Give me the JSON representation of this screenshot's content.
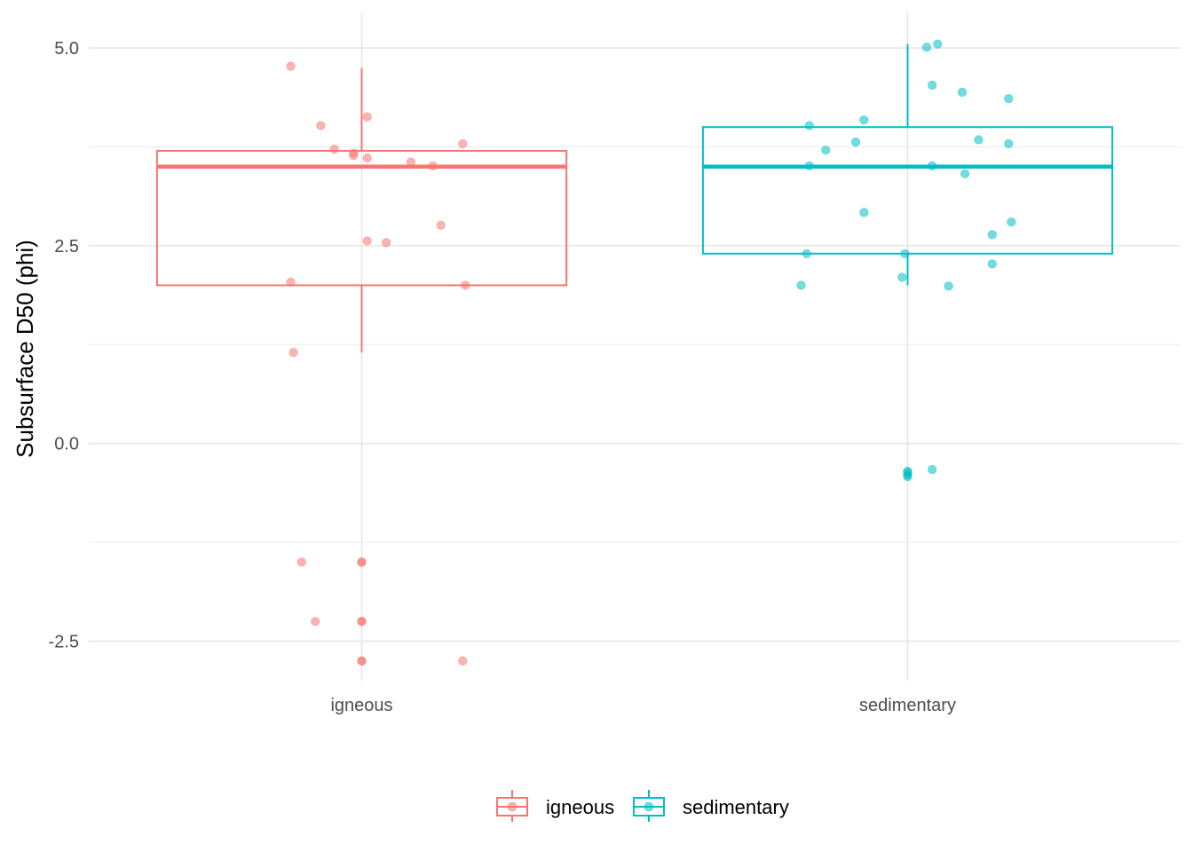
{
  "chart_data": {
    "type": "boxplot",
    "title": "",
    "xlabel": "",
    "ylabel": "Subsurface D50 (phi)",
    "ylim": [
      -3.0,
      5.45
    ],
    "y_ticks": [
      -2.5,
      0.0,
      2.5,
      5.0
    ],
    "y_tick_labels": [
      "-2.5",
      "0.0",
      "2.5",
      "5.0"
    ],
    "grid": true,
    "legend_position": "bottom",
    "categories": [
      "igneous",
      "sedimentary"
    ],
    "series": [
      {
        "name": "igneous",
        "color": "#F8766D",
        "box": {
          "q1": 2.0,
          "median": 3.5,
          "q3": 3.7,
          "whisker_low": 1.15,
          "whisker_high": 4.75
        },
        "points": [
          [
            -0.26,
            4.77
          ],
          [
            -0.15,
            4.02
          ],
          [
            -0.1,
            3.72
          ],
          [
            -0.03,
            3.67
          ],
          [
            -0.03,
            3.64
          ],
          [
            0.02,
            3.61
          ],
          [
            0.02,
            4.13
          ],
          [
            0.18,
            3.56
          ],
          [
            0.26,
            3.51
          ],
          [
            0.37,
            3.79
          ],
          [
            0.29,
            2.76
          ],
          [
            0.02,
            2.56
          ],
          [
            0.09,
            2.54
          ],
          [
            -0.26,
            2.04
          ],
          [
            0.38,
            2.0
          ],
          [
            -0.25,
            1.15
          ],
          [
            -0.22,
            -1.5
          ],
          [
            0.0,
            -1.5
          ],
          [
            0.0,
            -1.5
          ],
          [
            -0.17,
            -2.25
          ],
          [
            0.0,
            -2.25
          ],
          [
            0.0,
            -2.25
          ],
          [
            0.0,
            -2.75
          ],
          [
            0.0,
            -2.75
          ],
          [
            0.37,
            -2.75
          ]
        ]
      },
      {
        "name": "sedimentary",
        "color": "#00BFC4",
        "box": {
          "q1": 2.4,
          "median": 3.5,
          "q3": 4.0,
          "whisker_low": 2.0,
          "whisker_high": 5.05
        },
        "points": [
          [
            0.07,
            5.01
          ],
          [
            0.11,
            5.05
          ],
          [
            0.09,
            4.53
          ],
          [
            0.2,
            4.44
          ],
          [
            0.37,
            4.36
          ],
          [
            -0.16,
            4.09
          ],
          [
            -0.36,
            4.02
          ],
          [
            -0.19,
            3.81
          ],
          [
            -0.3,
            3.71
          ],
          [
            0.26,
            3.84
          ],
          [
            0.37,
            3.79
          ],
          [
            -0.36,
            3.51
          ],
          [
            0.09,
            3.51
          ],
          [
            0.21,
            3.41
          ],
          [
            -0.16,
            2.92
          ],
          [
            0.38,
            2.8
          ],
          [
            0.31,
            2.64
          ],
          [
            -0.37,
            2.4
          ],
          [
            -0.01,
            2.4
          ],
          [
            0.31,
            2.27
          ],
          [
            -0.02,
            2.1
          ],
          [
            -0.39,
            2.0
          ],
          [
            0.15,
            1.99
          ],
          [
            0.0,
            -0.35
          ],
          [
            0.0,
            -0.37
          ],
          [
            0.0,
            -0.4
          ],
          [
            0.0,
            -0.42
          ],
          [
            0.09,
            -0.33
          ]
        ]
      }
    ]
  }
}
